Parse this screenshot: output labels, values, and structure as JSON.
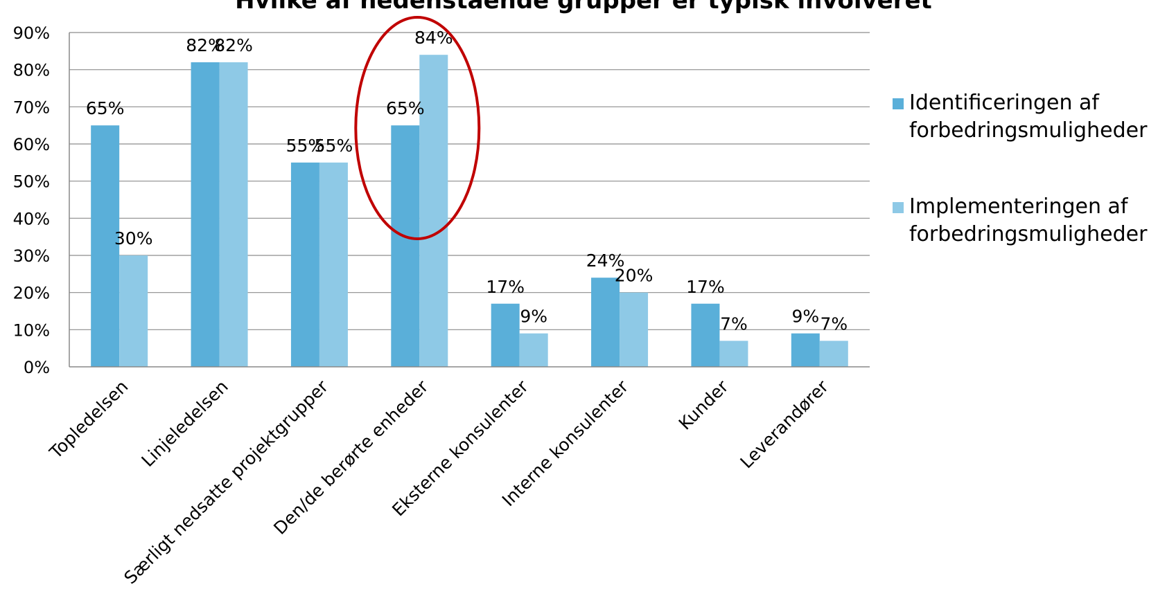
{
  "chart_data": {
    "type": "bar",
    "title": "Hvilke af nedenstående grupper er typisk involveret",
    "categories": [
      "Topledelsen",
      "Linjeledelsen",
      "Særligt nedsatte projektgrupper",
      "Den/de berørte enheder",
      "Eksterne konsulenter",
      "Interne konsulenter",
      "Kunder",
      "Leverandører"
    ],
    "series": [
      {
        "name": "Identificeringen af forbedringsmuligheder",
        "name_lines": [
          "Identificeringen af",
          "forbedringsmuligheder"
        ],
        "color": "#5aafd9",
        "values": [
          65,
          82,
          55,
          65,
          17,
          24,
          17,
          9
        ],
        "labels": [
          "65%",
          "82%",
          "55%",
          "65%",
          "17%",
          "24%",
          "17%",
          "9%"
        ]
      },
      {
        "name": "Implementeringen af forbedringsmuligheder",
        "name_lines": [
          "Implementeringen af",
          "forbedringsmuligheder"
        ],
        "color": "#8ec9e6",
        "values": [
          30,
          82,
          55,
          84,
          9,
          20,
          7,
          7
        ],
        "labels": [
          "30%",
          "82%",
          "55%",
          "84%",
          "9%",
          "20%",
          "7%",
          "7%"
        ]
      }
    ],
    "yticks": [
      "0%",
      "10%",
      "20%",
      "30%",
      "40%",
      "50%",
      "60%",
      "70%",
      "80%",
      "90%"
    ],
    "ylim": [
      0,
      90
    ],
    "grid": true,
    "legend_position": "right",
    "highlight": {
      "category": "Den/de berørte enheder",
      "shape": "ellipse",
      "color": "#c00000"
    }
  }
}
